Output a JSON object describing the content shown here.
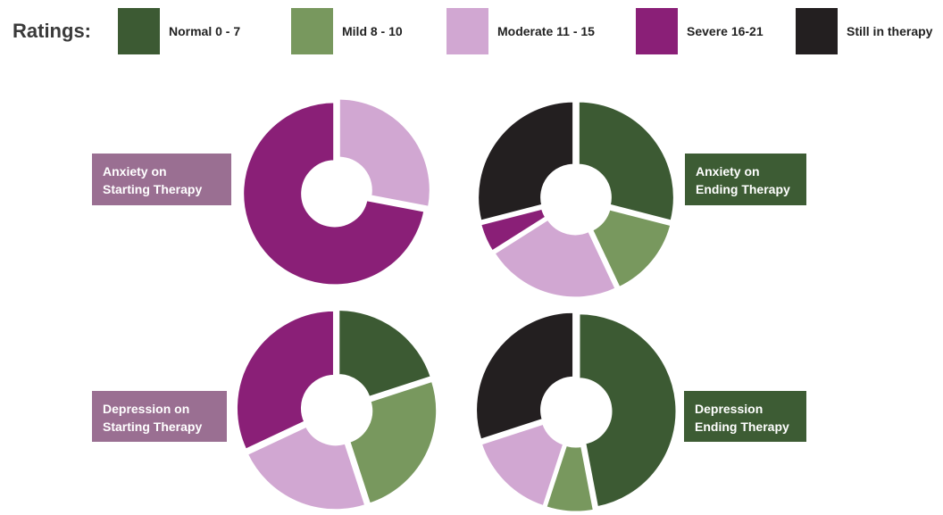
{
  "legend": {
    "title": "Ratings:",
    "items": [
      {
        "label": "Normal 0 - 7",
        "color": "#3c5a33",
        "key": "normal"
      },
      {
        "label": "Mild 8 - 10",
        "color": "#78985e",
        "key": "mild"
      },
      {
        "label": "Moderate 11 - 15",
        "color": "#d1a7d2",
        "key": "moderate"
      },
      {
        "label": "Severe 16-21",
        "color": "#8a1f77",
        "key": "severe"
      },
      {
        "label": "Still in therapy",
        "color": "#231f20",
        "key": "still"
      }
    ]
  },
  "chart_data": [
    {
      "type": "pie",
      "title_lines": [
        "Anxiety on",
        "Starting Therapy"
      ],
      "label_color": "#9a6f92",
      "slices": [
        {
          "category": "Moderate 11 - 15",
          "value": 28,
          "color": "#d1a7d2"
        },
        {
          "category": "Severe 16-21",
          "value": 72,
          "color": "#8a1f77"
        }
      ]
    },
    {
      "type": "pie",
      "title_lines": [
        "Anxiety on",
        "Ending Therapy"
      ],
      "label_color": "#3d5c34",
      "slices": [
        {
          "category": "Normal 0 - 7",
          "value": 29,
          "color": "#3c5a33"
        },
        {
          "category": "Mild 8 - 10",
          "value": 14,
          "color": "#78985e"
        },
        {
          "category": "Moderate 11 - 15",
          "value": 23,
          "color": "#d1a7d2"
        },
        {
          "category": "Severe 16-21",
          "value": 5,
          "color": "#8a1f77"
        },
        {
          "category": "Still in therapy",
          "value": 29,
          "color": "#231f20"
        }
      ]
    },
    {
      "type": "pie",
      "title_lines": [
        "Depression on",
        "Starting Therapy"
      ],
      "label_color": "#9a6f92",
      "slices": [
        {
          "category": "Normal 0 - 7",
          "value": 20,
          "color": "#3c5a33"
        },
        {
          "category": "Mild 8 - 10",
          "value": 25,
          "color": "#78985e"
        },
        {
          "category": "Moderate 11 - 15",
          "value": 23,
          "color": "#d1a7d2"
        },
        {
          "category": "Severe 16-21",
          "value": 32,
          "color": "#8a1f77"
        }
      ]
    },
    {
      "type": "pie",
      "title_lines": [
        "Depression",
        "Ending Therapy"
      ],
      "label_color": "#3d5c34",
      "slices": [
        {
          "category": "Normal 0 - 7",
          "value": 47,
          "color": "#3c5a33"
        },
        {
          "category": "Mild 8 - 10",
          "value": 8,
          "color": "#78985e"
        },
        {
          "category": "Moderate 11 - 15",
          "value": 15,
          "color": "#d1a7d2"
        },
        {
          "category": "Still in therapy",
          "value": 30,
          "color": "#231f20"
        }
      ]
    }
  ]
}
